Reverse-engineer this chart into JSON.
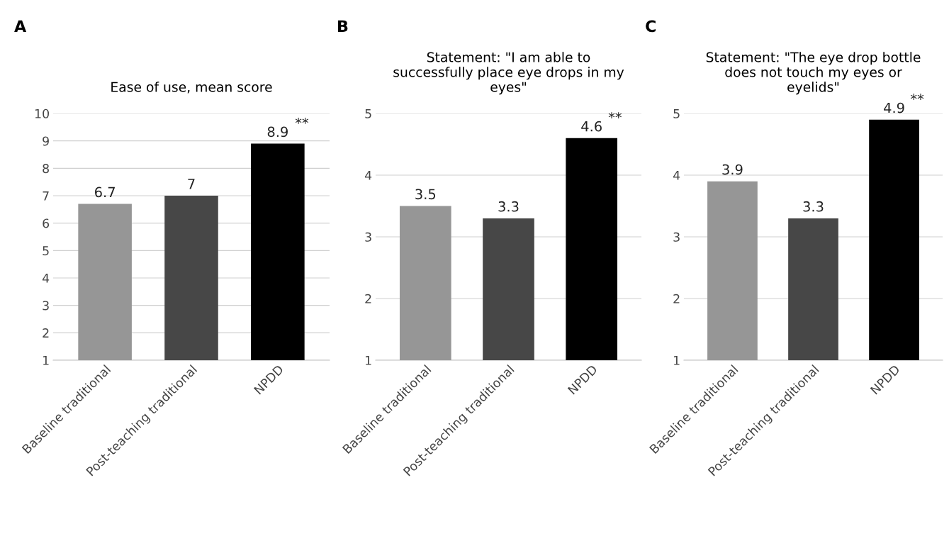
{
  "chart_data": [
    {
      "type": "bar",
      "title": "Ease of use, mean score",
      "categories": [
        "Baseline traditional",
        "Post-teaching traditional",
        "NPDD"
      ],
      "values": [
        6.7,
        7,
        8.9
      ],
      "colors": [
        "#969696",
        "#474747",
        "#000000"
      ],
      "ylim": [
        1,
        10
      ],
      "yticks": [
        1,
        2,
        3,
        4,
        5,
        6,
        7,
        8,
        9,
        10
      ],
      "grid": "y",
      "data_labels": true,
      "annotations": [
        "A",
        {
          "text": "**",
          "x": "NPDD",
          "y": 8.9
        }
      ]
    },
    {
      "type": "bar",
      "title": "Statement: \"I am able to successfully place eye drops in my eyes\"",
      "categories": [
        "Baseline traditional",
        "Post-teaching traditional",
        "NPDD"
      ],
      "values": [
        3.5,
        3.3,
        4.6
      ],
      "colors": [
        "#969696",
        "#474747",
        "#000000"
      ],
      "ylim": [
        1,
        5
      ],
      "yticks": [
        1,
        2,
        3,
        4,
        5
      ],
      "grid": "y",
      "data_labels": true,
      "annotations": [
        "B",
        {
          "text": "**",
          "x": "NPDD",
          "y": 4.6
        }
      ]
    },
    {
      "type": "bar",
      "title": "Statement: \"The eye drop bottle does not touch my eyes or eyelids\"",
      "categories": [
        "Baseline traditional",
        "Post-teaching traditional",
        "NPDD"
      ],
      "values": [
        3.9,
        3.3,
        4.9
      ],
      "colors": [
        "#969696",
        "#474747",
        "#000000"
      ],
      "ylim": [
        1,
        5
      ],
      "yticks": [
        1,
        2,
        3,
        4,
        5
      ],
      "grid": "y",
      "data_labels": true,
      "annotations": [
        "C",
        {
          "text": "**",
          "x": "NPDD",
          "y": 4.9
        }
      ]
    }
  ]
}
